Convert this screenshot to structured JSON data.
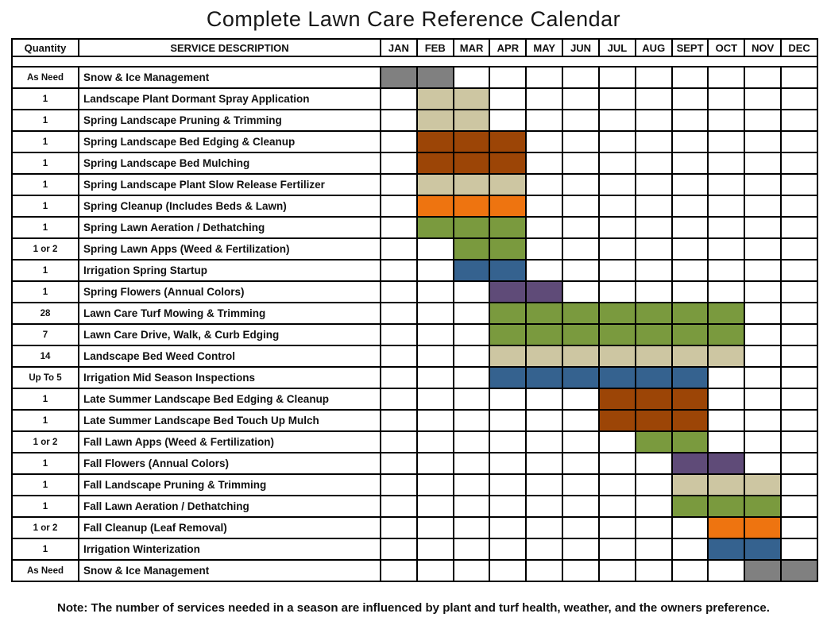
{
  "title": "Complete Lawn Care Reference Calendar",
  "note": "Note: The number of services needed in a season are influenced by plant and turf health, weather, and the owners preference.",
  "colors": {
    "gray": "#808080",
    "tan": "#CDC6A2",
    "brown": "#9C4506",
    "orange": "#EE7410",
    "green": "#7A9A3E",
    "blue": "#35628F",
    "purple": "#5F4B78"
  },
  "chart_data": {
    "type": "table",
    "subtype": "gantt-calendar",
    "title": "Complete Lawn Care Reference Calendar",
    "quantity_header": "Quantity",
    "service_header": "SERVICE DESCRIPTION",
    "months": [
      "JAN",
      "FEB",
      "MAR",
      "APR",
      "MAY",
      "JUN",
      "JUL",
      "AUG",
      "SEPT",
      "OCT",
      "NOV",
      "DEC"
    ],
    "rows": [
      {
        "quantity": "As Need",
        "service": "Snow & Ice Management",
        "start_month": "JAN",
        "end_month": "FEB",
        "color": "gray"
      },
      {
        "quantity": "1",
        "service": "Landscape Plant Dormant Spray Application",
        "start_month": "FEB",
        "end_month": "MAR",
        "color": "tan"
      },
      {
        "quantity": "1",
        "service": "Spring Landscape Pruning & Trimming",
        "start_month": "FEB",
        "end_month": "MAR",
        "color": "tan"
      },
      {
        "quantity": "1",
        "service": "Spring Landscape Bed Edging & Cleanup",
        "start_month": "FEB",
        "end_month": "APR",
        "color": "brown"
      },
      {
        "quantity": "1",
        "service": "Spring Landscape Bed Mulching",
        "start_month": "FEB",
        "end_month": "APR",
        "color": "brown"
      },
      {
        "quantity": "1",
        "service": "Spring Landscape Plant Slow Release Fertilizer",
        "start_month": "FEB",
        "end_month": "APR",
        "color": "tan"
      },
      {
        "quantity": "1",
        "service": "Spring Cleanup (Includes Beds & Lawn)",
        "start_month": "FEB",
        "end_month": "APR",
        "color": "orange"
      },
      {
        "quantity": "1",
        "service": "Spring Lawn Aeration / Dethatching",
        "start_month": "FEB",
        "end_month": "APR",
        "color": "green"
      },
      {
        "quantity": "1 or 2",
        "service": "Spring Lawn Apps (Weed & Fertilization)",
        "start_month": "MAR",
        "end_month": "APR",
        "color": "green"
      },
      {
        "quantity": "1",
        "service": "Irrigation Spring Startup",
        "start_month": "MAR",
        "end_month": "APR",
        "color": "blue"
      },
      {
        "quantity": "1",
        "service": "Spring Flowers (Annual Colors)",
        "start_month": "APR",
        "end_month": "MAY",
        "color": "purple"
      },
      {
        "quantity": "28",
        "service": "Lawn Care Turf Mowing & Trimming",
        "start_month": "APR",
        "end_month": "OCT",
        "color": "green"
      },
      {
        "quantity": "7",
        "service": "Lawn Care Drive, Walk, & Curb Edging",
        "start_month": "APR",
        "end_month": "OCT",
        "color": "green"
      },
      {
        "quantity": "14",
        "service": "Landscape Bed Weed Control",
        "start_month": "APR",
        "end_month": "OCT",
        "color": "tan"
      },
      {
        "quantity": "Up To 5",
        "service": "Irrigation Mid Season Inspections",
        "start_month": "APR",
        "end_month": "SEPT",
        "color": "blue"
      },
      {
        "quantity": "1",
        "service": "Late Summer Landscape Bed Edging & Cleanup",
        "start_month": "JUL",
        "end_month": "SEPT",
        "color": "brown"
      },
      {
        "quantity": "1",
        "service": "Late Summer Landscape Bed Touch Up Mulch",
        "start_month": "JUL",
        "end_month": "SEPT",
        "color": "brown"
      },
      {
        "quantity": "1 or 2",
        "service": "Fall Lawn Apps (Weed & Fertilization)",
        "start_month": "AUG",
        "end_month": "SEPT",
        "color": "green"
      },
      {
        "quantity": "1",
        "service": "Fall Flowers (Annual Colors)",
        "start_month": "SEPT",
        "end_month": "OCT",
        "color": "purple"
      },
      {
        "quantity": "1",
        "service": "Fall Landscape Pruning & Trimming",
        "start_month": "SEPT",
        "end_month": "NOV",
        "color": "tan"
      },
      {
        "quantity": "1",
        "service": "Fall Lawn Aeration / Dethatching",
        "start_month": "SEPT",
        "end_month": "NOV",
        "color": "green"
      },
      {
        "quantity": "1 or 2",
        "service": "Fall Cleanup (Leaf Removal)",
        "start_month": "OCT",
        "end_month": "NOV",
        "color": "orange"
      },
      {
        "quantity": "1",
        "service": "Irrigation Winterization",
        "start_month": "OCT",
        "end_month": "NOV",
        "color": "blue"
      },
      {
        "quantity": "As Need",
        "service": "Snow & Ice Management",
        "start_month": "NOV",
        "end_month": "DEC",
        "color": "gray"
      }
    ]
  }
}
